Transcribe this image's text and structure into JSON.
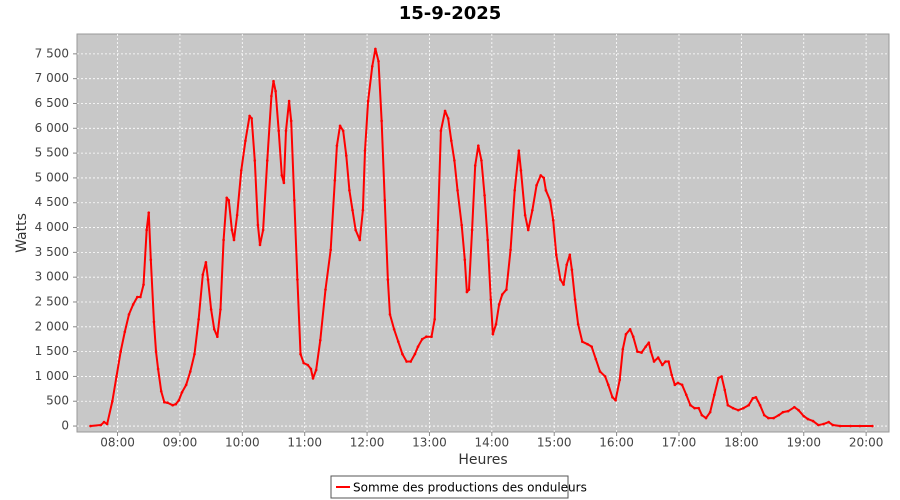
{
  "chart_data": {
    "type": "line",
    "title": "15-9-2025",
    "xlabel": "Heures",
    "ylabel": "Watts",
    "x": [
      "07:34",
      "07:44",
      "07:47",
      "07:50",
      "07:55",
      "07:59",
      "08:03",
      "08:07",
      "08:11",
      "08:15",
      "08:19",
      "08:22",
      "08:25",
      "08:28",
      "08:30",
      "08:32",
      "08:35",
      "08:37",
      "08:39",
      "08:42",
      "08:45",
      "08:48",
      "08:53",
      "08:56",
      "08:59",
      "09:02",
      "09:06",
      "09:10",
      "09:14",
      "09:18",
      "09:22",
      "09:25",
      "09:27",
      "09:30",
      "09:33",
      "09:36",
      "09:39",
      "09:42",
      "09:45",
      "09:47",
      "09:50",
      "09:52",
      "09:55",
      "09:59",
      "10:03",
      "10:07",
      "10:09",
      "10:12",
      "10:15",
      "10:17",
      "10:20",
      "10:24",
      "10:28",
      "10:30",
      "10:32",
      "10:35",
      "10:38",
      "10:40",
      "10:42",
      "10:45",
      "10:47",
      "10:50",
      "10:53",
      "10:56",
      "10:59",
      "11:03",
      "11:06",
      "11:08",
      "11:11",
      "11:15",
      "11:20",
      "11:25",
      "11:29",
      "11:31",
      "11:34",
      "11:37",
      "11:40",
      "11:43",
      "11:46",
      "11:49",
      "11:53",
      "11:56",
      "11:58",
      "12:01",
      "12:05",
      "12:08",
      "12:11",
      "12:14",
      "12:17",
      "12:20",
      "12:22",
      "12:26",
      "12:30",
      "12:34",
      "12:38",
      "12:42",
      "12:46",
      "12:49",
      "12:53",
      "12:57",
      "13:02",
      "13:05",
      "13:08",
      "13:11",
      "13:15",
      "13:18",
      "13:21",
      "13:24",
      "13:27",
      "13:31",
      "13:34",
      "13:36",
      "13:38",
      "13:41",
      "13:44",
      "13:47",
      "13:50",
      "13:53",
      "13:56",
      "13:59",
      "14:01",
      "14:04",
      "14:07",
      "14:10",
      "14:14",
      "14:18",
      "14:22",
      "14:26",
      "14:28",
      "14:32",
      "14:35",
      "14:39",
      "14:43",
      "14:47",
      "14:50",
      "14:52",
      "14:56",
      "14:59",
      "15:02",
      "15:06",
      "15:09",
      "15:12",
      "15:15",
      "15:17",
      "15:20",
      "15:23",
      "15:27",
      "15:32",
      "15:36",
      "15:40",
      "15:44",
      "15:49",
      "15:52",
      "15:56",
      "15:59",
      "16:03",
      "16:06",
      "16:09",
      "16:13",
      "16:16",
      "16:20",
      "16:24",
      "16:28",
      "16:31",
      "16:33",
      "16:36",
      "16:40",
      "16:44",
      "16:47",
      "16:50",
      "16:53",
      "16:56",
      "16:59",
      "17:03",
      "17:07",
      "17:11",
      "17:15",
      "17:19",
      "17:22",
      "17:26",
      "17:30",
      "17:34",
      "17:38",
      "17:41",
      "17:44",
      "17:47",
      "17:52",
      "17:57",
      "18:02",
      "18:07",
      "18:11",
      "18:14",
      "18:18",
      "18:22",
      "18:26",
      "18:31",
      "18:36",
      "18:40",
      "18:45",
      "18:51",
      "18:55",
      "19:00",
      "19:04",
      "19:09",
      "19:14",
      "19:19",
      "19:24",
      "19:28",
      "19:35",
      "19:45",
      "19:54",
      "20:06"
    ],
    "series": [
      {
        "name": "Somme des productions des onduleurs",
        "color": "#ff0000",
        "values": [
          0,
          20,
          80,
          40,
          500,
          1000,
          1500,
          1900,
          2250,
          2450,
          2600,
          2600,
          2850,
          3950,
          4300,
          3350,
          2100,
          1500,
          1150,
          700,
          480,
          470,
          420,
          440,
          520,
          680,
          830,
          1100,
          1450,
          2150,
          3050,
          3300,
          2950,
          2350,
          1950,
          1800,
          2350,
          3750,
          4600,
          4550,
          3950,
          3750,
          4250,
          5150,
          5750,
          6250,
          6200,
          5350,
          4050,
          3650,
          3950,
          5350,
          6650,
          6950,
          6750,
          5950,
          5050,
          4900,
          5950,
          6550,
          6150,
          4550,
          2950,
          1450,
          1270,
          1230,
          1150,
          960,
          1130,
          1730,
          2750,
          3550,
          4950,
          5650,
          6050,
          5950,
          5450,
          4750,
          4350,
          3950,
          3750,
          4350,
          5550,
          6550,
          7250,
          7600,
          7350,
          6150,
          4550,
          2950,
          2250,
          1950,
          1700,
          1450,
          1300,
          1300,
          1450,
          1600,
          1750,
          1800,
          1800,
          2150,
          3950,
          5950,
          6350,
          6200,
          5750,
          5350,
          4750,
          4050,
          3350,
          2700,
          2750,
          3950,
          5250,
          5650,
          5350,
          4650,
          3750,
          2550,
          1850,
          2050,
          2450,
          2650,
          2750,
          3550,
          4750,
          5550,
          5150,
          4250,
          3950,
          4350,
          4850,
          5050,
          5000,
          4750,
          4550,
          4150,
          3450,
          2950,
          2850,
          3250,
          3450,
          3150,
          2550,
          2050,
          1700,
          1650,
          1600,
          1350,
          1100,
          1000,
          830,
          580,
          520,
          930,
          1550,
          1850,
          1950,
          1800,
          1500,
          1480,
          1600,
          1680,
          1500,
          1300,
          1380,
          1230,
          1300,
          1300,
          1030,
          830,
          870,
          830,
          630,
          420,
          360,
          360,
          220,
          160,
          280,
          630,
          970,
          1000,
          730,
          420,
          360,
          320,
          360,
          420,
          560,
          580,
          420,
          220,
          160,
          160,
          220,
          280,
          300,
          380,
          320,
          200,
          140,
          100,
          20,
          40,
          80,
          20,
          0,
          0,
          0,
          0
        ]
      }
    ],
    "xlim": [
      "07:21",
      "20:22"
    ],
    "xticks": [
      "08:00",
      "09:00",
      "10:00",
      "11:00",
      "12:00",
      "13:00",
      "14:00",
      "15:00",
      "16:00",
      "17:00",
      "18:00",
      "19:00",
      "20:00"
    ],
    "ylim": [
      -120,
      7900
    ],
    "yticks": [
      0,
      500,
      {
        "value": 1000,
        "label": "1 000"
      },
      {
        "value": 1500,
        "label": "1 500"
      },
      {
        "value": 2000,
        "label": "2 000"
      },
      {
        "value": 2500,
        "label": "2 500"
      },
      {
        "value": 3000,
        "label": "3 000"
      },
      {
        "value": 3500,
        "label": "3 500"
      },
      {
        "value": 4000,
        "label": "4 000"
      },
      {
        "value": 4500,
        "label": "4 500"
      },
      {
        "value": 5000,
        "label": "5 000"
      },
      {
        "value": 5500,
        "label": "5 500"
      },
      {
        "value": 6000,
        "label": "6 000"
      },
      {
        "value": 6500,
        "label": "6 500"
      },
      {
        "value": 7000,
        "label": "7 000"
      },
      {
        "value": 7500,
        "label": "7 500"
      }
    ],
    "grid": true,
    "legend": "bottom"
  }
}
